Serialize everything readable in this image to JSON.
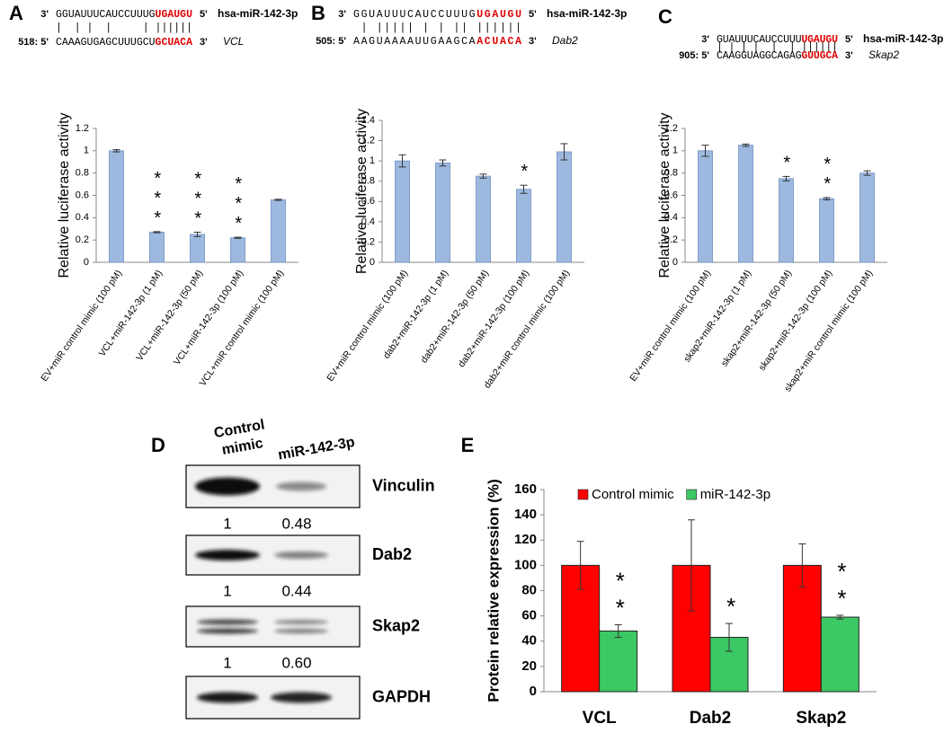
{
  "panel_labels": [
    "A",
    "B",
    "C",
    "D",
    "E"
  ],
  "alignments": [
    {
      "mirna": {
        "prime_left": "3'",
        "sequence": "GGUAUUUCAUCCUUUG",
        "seed": "UGAUGU",
        "prime_right": "5'",
        "name": "hsa-miR-142-3p"
      },
      "pairing": "|  | |  |     | ||||||",
      "target": {
        "position": "518: 5'",
        "sequence": "CAAAGUGAGCUUUGCU",
        "seed": "GCUACA",
        "prime_right": "3'",
        "name": "VCL"
      }
    },
    {
      "mirna": {
        "prime_left": "3'",
        "sequence": "GGUAUUUCAUCCUUUG",
        "seed": "UGAUGU",
        "prime_right": "5'",
        "name": "hsa-miR-142-3p"
      },
      "pairing": " | ||||| | | || ||||||",
      "target": {
        "position": "505: 5'",
        "sequence": "AAGUAAAAUUGAAGCA",
        "seed": "ACUACA",
        "prime_right": "3'",
        "name": "Dab2"
      }
    },
    {
      "mirna": {
        "prime_left": "3'",
        "sequence": "GUAUUUCAUCCUUU",
        "seed": "UGAUGU",
        "prime_right": "5'",
        "name": "hsa-miR-142-3p"
      },
      "pairing": "| | | |  |  | ||||||",
      "target": {
        "position": "905: 5'",
        "sequence": "CAAGGUAGGCAGAG",
        "seed": "GUUGCA",
        "prime_right": "3'",
        "name": "Skap2"
      }
    }
  ],
  "chart_data": [
    {
      "type": "bar",
      "ylabel": "Relative luciferase activity",
      "categories": [
        "EV+miR control mimic (100 pM)",
        "VCL+miR-142-3p (1 pM)",
        "VCL+miR-142-3p (50 pM)",
        "VCL+miR-142-3p (100 pM)",
        "VCL+miR control mimic (100 pM)"
      ],
      "values": [
        1.0,
        0.27,
        0.25,
        0.22,
        0.56
      ],
      "errors": [
        0.01,
        0.005,
        0.02,
        0.005,
        0.005
      ],
      "annotations": [
        null,
        "***",
        "***",
        "***",
        null
      ],
      "color": "#9db9e0",
      "ylim": [
        0,
        1.2
      ],
      "yticks": [
        0,
        0.2,
        0.4,
        0.6,
        0.8,
        1,
        1.2
      ]
    },
    {
      "type": "bar",
      "ylabel": "Relative luciferase activity",
      "categories": [
        "EV+miR control mimic (100 pM)",
        "dab2+miR-142-3p (1 pM)",
        "dab2+miR-142-3p (50 pM)",
        "dab2+miR-142-3p (100 pM)",
        "dab2+miR control mimic (100 pM)"
      ],
      "values": [
        1.0,
        0.98,
        0.85,
        0.72,
        1.09
      ],
      "errors": [
        0.06,
        0.03,
        0.02,
        0.04,
        0.08
      ],
      "annotations": [
        null,
        null,
        null,
        "*",
        null
      ],
      "color": "#9db9e0",
      "ylim": [
        0,
        1.4
      ],
      "yticks": [
        0,
        0.2,
        0.4,
        0.6,
        0.8,
        1,
        1.2,
        1.4
      ]
    },
    {
      "type": "bar",
      "ylabel": "Relative luciferase activity",
      "categories": [
        "EV+miR control mimic (100 pM)",
        "skap2+miR-142-3p (1 pM)",
        "skap2+miR-142-3p (50 pM)",
        "skap2+miR-142-3p (100 pM)",
        "skap2+miR control mimic (100 pM)"
      ],
      "values": [
        1.0,
        1.05,
        0.75,
        0.57,
        0.8
      ],
      "errors": [
        0.05,
        0.01,
        0.02,
        0.01,
        0.02
      ],
      "annotations": [
        null,
        null,
        "*",
        "**",
        null
      ],
      "color": "#9db9e0",
      "ylim": [
        0,
        1.2
      ],
      "yticks": [
        0,
        0.2,
        0.4,
        0.6,
        0.8,
        1,
        1.2
      ]
    },
    {
      "type": "grouped_bar",
      "ylabel": "Protein relative expression  (%)",
      "categories": [
        "VCL",
        "Dab2",
        "Skap2"
      ],
      "series": [
        {
          "name": "Control mimic",
          "color": "#ff0000",
          "values": [
            100,
            100,
            100
          ],
          "errors": [
            19,
            36,
            17
          ],
          "annotations": [
            null,
            null,
            null
          ]
        },
        {
          "name": "miR-142-3p",
          "color": "#3cc864",
          "values": [
            48,
            43,
            59
          ],
          "errors": [
            5,
            11,
            1.5
          ],
          "annotations": [
            "**",
            "*",
            "**"
          ]
        }
      ],
      "ylim": [
        0,
        160
      ],
      "yticks": [
        0,
        20,
        40,
        60,
        80,
        100,
        120,
        140,
        160
      ],
      "legend": "top"
    }
  ],
  "blot": {
    "column_headers": [
      [
        "Control",
        "mimic"
      ],
      [
        "miR-142-3p"
      ]
    ],
    "rows": [
      {
        "name": "Vinculin",
        "values": [
          1,
          0.48
        ]
      },
      {
        "name": "Dab2",
        "values": [
          1,
          0.44
        ]
      },
      {
        "name": "Skap2",
        "values": [
          1,
          0.6
        ],
        "value_labels": [
          "1",
          "0.60"
        ]
      },
      {
        "name": "GAPDH"
      }
    ]
  }
}
